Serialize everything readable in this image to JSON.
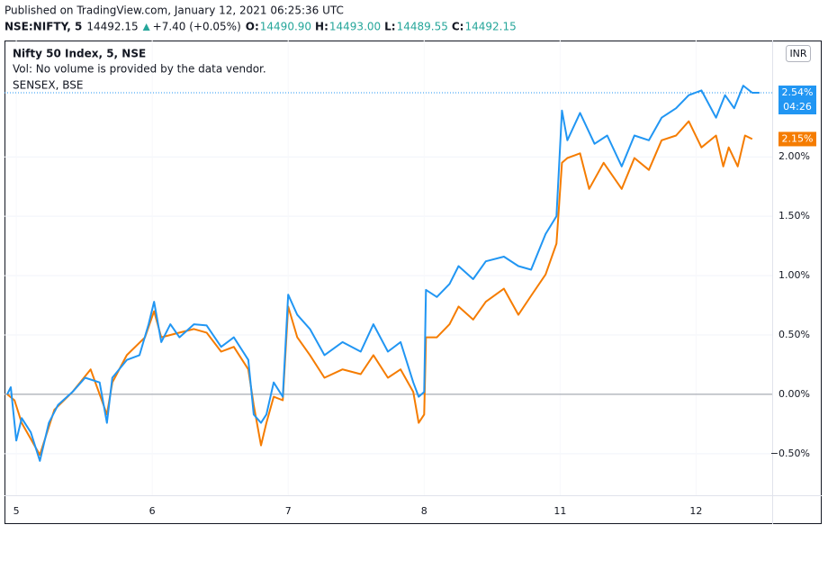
{
  "header": {
    "published": "Published on TradingView.com, January 12, 2021 06:25:36 UTC",
    "symbol": "NSE:NIFTY, 5",
    "price": "14492.15",
    "change": "+7.40 (+0.05%)",
    "ohlc": [
      {
        "key": "O:",
        "value": "14490.90"
      },
      {
        "key": "H:",
        "value": "14493.00"
      },
      {
        "key": "L:",
        "value": "14489.55"
      },
      {
        "key": "C:",
        "value": "14492.15"
      }
    ]
  },
  "legend": {
    "main": "Nifty 50 Index, 5, NSE",
    "volume": "Vol: No volume is provided by the data vendor.",
    "compare": "SENSEX, BSE"
  },
  "currency": "INR",
  "countdown": "04:26",
  "chart_data": {
    "type": "line",
    "xlim": [
      -5,
      417
    ],
    "xticks": [
      {
        "value": 0,
        "label": "5"
      },
      {
        "value": 75,
        "label": "6"
      },
      {
        "value": 150,
        "label": "7"
      },
      {
        "value": 225,
        "label": "8"
      },
      {
        "value": 300,
        "label": "11"
      },
      {
        "value": 375,
        "label": "12"
      }
    ],
    "ylim": [
      -0.85,
      2.98
    ],
    "yticks": [
      {
        "value": -0.5,
        "label": "−0.50%"
      },
      {
        "value": 0,
        "label": "0.00%"
      },
      {
        "value": 0.5,
        "label": "0.50%"
      },
      {
        "value": 1,
        "label": "1.00%"
      },
      {
        "value": 1.5,
        "label": "1.50%"
      },
      {
        "value": 2,
        "label": "2.00%"
      }
    ],
    "grid": true,
    "baseline": 0,
    "series": [
      {
        "name": "Nifty 50 Index, 5, NSE",
        "color": "#2196f3",
        "last_value": 2.54,
        "last_label": "2.54%",
        "x": [
          -5,
          -3,
          0,
          3,
          8,
          13,
          18,
          23,
          31,
          38,
          46,
          50,
          53,
          61,
          68,
          73,
          76,
          80,
          85,
          90,
          98,
          105,
          113,
          120,
          128,
          131,
          135,
          138,
          142,
          147,
          150,
          155,
          162,
          170,
          180,
          190,
          197,
          205,
          212,
          219,
          222,
          225,
          226,
          232,
          239,
          244,
          252,
          259,
          269,
          277,
          284,
          292,
          298,
          301,
          304,
          311,
          319,
          326,
          334,
          341,
          349,
          356,
          364,
          371,
          378,
          386,
          391,
          396,
          401,
          406,
          410
        ],
        "values": [
          0,
          0.06,
          -0.39,
          -0.2,
          -0.32,
          -0.56,
          -0.24,
          -0.09,
          0.02,
          0.14,
          0.1,
          -0.24,
          0.14,
          0.29,
          0.33,
          0.59,
          0.78,
          0.44,
          0.59,
          0.48,
          0.59,
          0.58,
          0.4,
          0.48,
          0.29,
          -0.17,
          -0.24,
          -0.17,
          0.1,
          -0.02,
          0.84,
          0.67,
          0.55,
          0.33,
          0.44,
          0.36,
          0.59,
          0.36,
          0.44,
          0.1,
          -0.02,
          0.02,
          0.88,
          0.82,
          0.93,
          1.08,
          0.97,
          1.12,
          1.16,
          1.08,
          1.05,
          1.35,
          1.5,
          2.39,
          2.14,
          2.37,
          2.11,
          2.18,
          1.92,
          2.18,
          2.14,
          2.33,
          2.41,
          2.52,
          2.56,
          2.33,
          2.52,
          2.41,
          2.6,
          2.54,
          2.54
        ]
      },
      {
        "name": "SENSEX, BSE",
        "color": "#f57c00",
        "last_value": 2.15,
        "last_label": "2.15%",
        "x": [
          -5,
          -1,
          3,
          13,
          21,
          31,
          41,
          50,
          53,
          61,
          71,
          76,
          80,
          90,
          98,
          105,
          113,
          120,
          128,
          131,
          135,
          138,
          142,
          147,
          150,
          155,
          162,
          170,
          180,
          190,
          197,
          205,
          212,
          219,
          222,
          225,
          226,
          232,
          239,
          244,
          252,
          259,
          269,
          277,
          284,
          292,
          298,
          301,
          304,
          311,
          316,
          324,
          334,
          341,
          349,
          356,
          364,
          371,
          378,
          386,
          390,
          393,
          398,
          402,
          406
        ],
        "values": [
          0,
          -0.05,
          -0.24,
          -0.51,
          -0.13,
          0.02,
          0.21,
          -0.17,
          0.1,
          0.33,
          0.48,
          0.7,
          0.48,
          0.52,
          0.55,
          0.52,
          0.36,
          0.4,
          0.21,
          -0.09,
          -0.43,
          -0.24,
          -0.02,
          -0.05,
          0.74,
          0.48,
          0.33,
          0.14,
          0.21,
          0.17,
          0.33,
          0.14,
          0.21,
          0.02,
          -0.24,
          -0.17,
          0.48,
          0.48,
          0.59,
          0.74,
          0.63,
          0.78,
          0.89,
          0.67,
          0.83,
          1.01,
          1.27,
          1.95,
          1.99,
          2.03,
          1.73,
          1.95,
          1.73,
          1.99,
          1.89,
          2.14,
          2.18,
          2.3,
          2.08,
          2.18,
          1.92,
          2.08,
          1.92,
          2.18,
          2.15
        ]
      }
    ]
  }
}
